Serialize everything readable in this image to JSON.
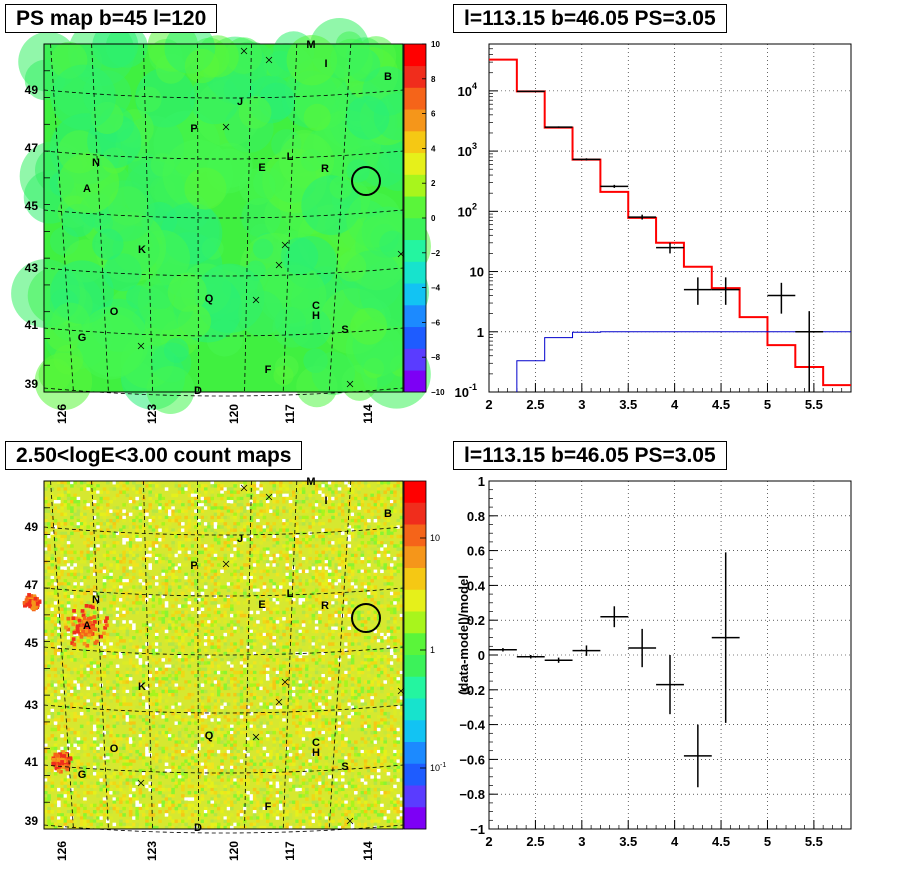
{
  "panels": {
    "tl": {
      "title": "PS map b=45 l=120"
    },
    "tr": {
      "title": "l=113.15 b=46.05 PS=3.05"
    },
    "bl": {
      "title": "2.50<logE<3.00 count maps"
    },
    "br": {
      "title": "l=113.15 b=46.05 PS=3.05"
    }
  },
  "chart_data": [
    {
      "type": "heatmap",
      "title": "PS map b=45 l=120",
      "xticks": [
        "126",
        "123",
        "120",
        "117",
        "114"
      ],
      "yticks": [
        "49",
        "47",
        "45",
        "43",
        "41",
        "39"
      ],
      "colorbar": {
        "ticks": [
          "10",
          "8",
          "6",
          "4",
          "2",
          "0",
          "−2",
          "−4",
          "−6",
          "−8",
          "−10"
        ],
        "range": [
          -10,
          10
        ]
      },
      "base_color": "#40f040",
      "source_labels": [
        "M",
        "I",
        "B",
        "J",
        "P",
        "N",
        "E",
        "L",
        "R",
        "A",
        "K",
        "Q",
        "C",
        "H",
        "O",
        "S",
        "G",
        "F",
        "D"
      ],
      "circle_label": "",
      "colors": {
        "palette": [
          "#7d00f5",
          "#5a3cff",
          "#1e5cff",
          "#1c8aff",
          "#12c3f3",
          "#17e3cd",
          "#24f5a0",
          "#3cf25a",
          "#5af53a",
          "#a8f51c",
          "#e6f01a",
          "#f5c814",
          "#f5961a",
          "#f56419",
          "#f02d1c",
          "#ff0000"
        ]
      }
    },
    {
      "type": "line",
      "title": "l=113.15 b=46.05 PS=3.05",
      "xlim": [
        2,
        5.9
      ],
      "ylim": [
        0.1,
        60000
      ],
      "yscale": "log",
      "grid": true,
      "xticks": [
        "2",
        "2.5",
        "3",
        "3.5",
        "4",
        "4.5",
        "5",
        "5.5"
      ],
      "yticks": [
        "10^-1",
        "1",
        "10",
        "10^2",
        "10^3",
        "10^4"
      ],
      "series": [
        {
          "type": "step",
          "color": "#ff0000",
          "edges": [
            2,
            2.3,
            2.6,
            2.9,
            3.2,
            3.5,
            3.8,
            4.1,
            4.4,
            4.7,
            5.0,
            5.3,
            5.6,
            5.9
          ],
          "values": [
            33000,
            9800,
            2450,
            720,
            210,
            78,
            30,
            12,
            5.3,
            1.75,
            0.6,
            0.26,
            0.13
          ]
        },
        {
          "type": "step",
          "color": "#0000cc",
          "edges": [
            2.3,
            2.6,
            2.9,
            3.2,
            3.5,
            3.8,
            4.1,
            4.4,
            4.7,
            5.0,
            5.3,
            5.6,
            5.9
          ],
          "values": [
            0.33,
            0.8,
            0.98,
            1.0,
            1.0,
            1.0,
            1.0,
            1.0,
            1.0,
            1.0,
            1.0,
            1.0
          ]
        },
        {
          "type": "errorbar",
          "color": "#000000",
          "points": [
            {
              "x": 2.45,
              "y": 9800,
              "xerr": 0.15,
              "ylo": 9600,
              "yhi": 10000
            },
            {
              "x": 2.75,
              "y": 2500,
              "xerr": 0.15,
              "ylo": 2430,
              "yhi": 2570
            },
            {
              "x": 3.05,
              "y": 730,
              "xerr": 0.15,
              "ylo": 700,
              "yhi": 760
            },
            {
              "x": 3.35,
              "y": 260,
              "xerr": 0.15,
              "ylo": 245,
              "yhi": 275
            },
            {
              "x": 3.65,
              "y": 80,
              "xerr": 0.15,
              "ylo": 73,
              "yhi": 88
            },
            {
              "x": 3.95,
              "y": 25,
              "xerr": 0.15,
              "ylo": 20,
              "yhi": 30
            },
            {
              "x": 4.25,
              "y": 5,
              "xerr": 0.15,
              "ylo": 2.8,
              "yhi": 8
            },
            {
              "x": 4.55,
              "y": 5,
              "xerr": 0.15,
              "ylo": 2.8,
              "yhi": 8
            },
            {
              "x": 5.15,
              "y": 4,
              "xerr": 0.15,
              "ylo": 2,
              "yhi": 6.5
            },
            {
              "x": 5.45,
              "y": 1,
              "xerr": 0.15,
              "ylo": 0.1,
              "yhi": 2.2
            }
          ]
        }
      ]
    },
    {
      "type": "heatmap",
      "title": "2.50<logE<3.00 count maps",
      "xticks": [
        "126",
        "123",
        "120",
        "117",
        "114"
      ],
      "yticks": [
        "49",
        "47",
        "45",
        "43",
        "41",
        "39"
      ],
      "colorbar": {
        "ticks": [
          "10",
          "1",
          "10^-1"
        ],
        "scale": "log"
      },
      "base_color": "#d6e830",
      "source_labels": [
        "M",
        "I",
        "B",
        "J",
        "P",
        "N",
        "E",
        "L",
        "R",
        "A",
        "K",
        "Q",
        "C",
        "H",
        "O",
        "S",
        "G",
        "F",
        "D"
      ]
    },
    {
      "type": "scatter",
      "title": "l=113.15 b=46.05 PS=3.05",
      "ylabel": "(data-model)/model",
      "xlim": [
        2,
        5.9
      ],
      "ylim": [
        -1,
        1
      ],
      "grid": true,
      "xticks": [
        "2",
        "2.5",
        "3",
        "3.5",
        "4",
        "4.5",
        "5",
        "5.5"
      ],
      "yticks": [
        "1",
        "0.8",
        "0.6",
        "0.4",
        "0.2",
        "0",
        "−0.2",
        "−0.4",
        "−0.6",
        "−0.8",
        "−1"
      ],
      "points": [
        {
          "x": 2.15,
          "y": 0.03,
          "xerr": 0.15,
          "yerr": 0.01
        },
        {
          "x": 2.45,
          "y": -0.01,
          "xerr": 0.15,
          "yerr": 0.01
        },
        {
          "x": 2.75,
          "y": -0.03,
          "xerr": 0.15,
          "yerr": 0.015
        },
        {
          "x": 3.05,
          "y": 0.025,
          "xerr": 0.15,
          "yerr": 0.03
        },
        {
          "x": 3.35,
          "y": 0.22,
          "xerr": 0.15,
          "yerr": 0.06
        },
        {
          "x": 3.65,
          "y": 0.04,
          "xerr": 0.15,
          "yerr": 0.11
        },
        {
          "x": 3.95,
          "y": -0.17,
          "xerr": 0.15,
          "yerr": 0.17
        },
        {
          "x": 4.25,
          "y": -0.58,
          "xerr": 0.15,
          "yerr": 0.18
        },
        {
          "x": 4.55,
          "y": 0.1,
          "xerr": 0.15,
          "yerr": 0.49
        }
      ]
    }
  ]
}
